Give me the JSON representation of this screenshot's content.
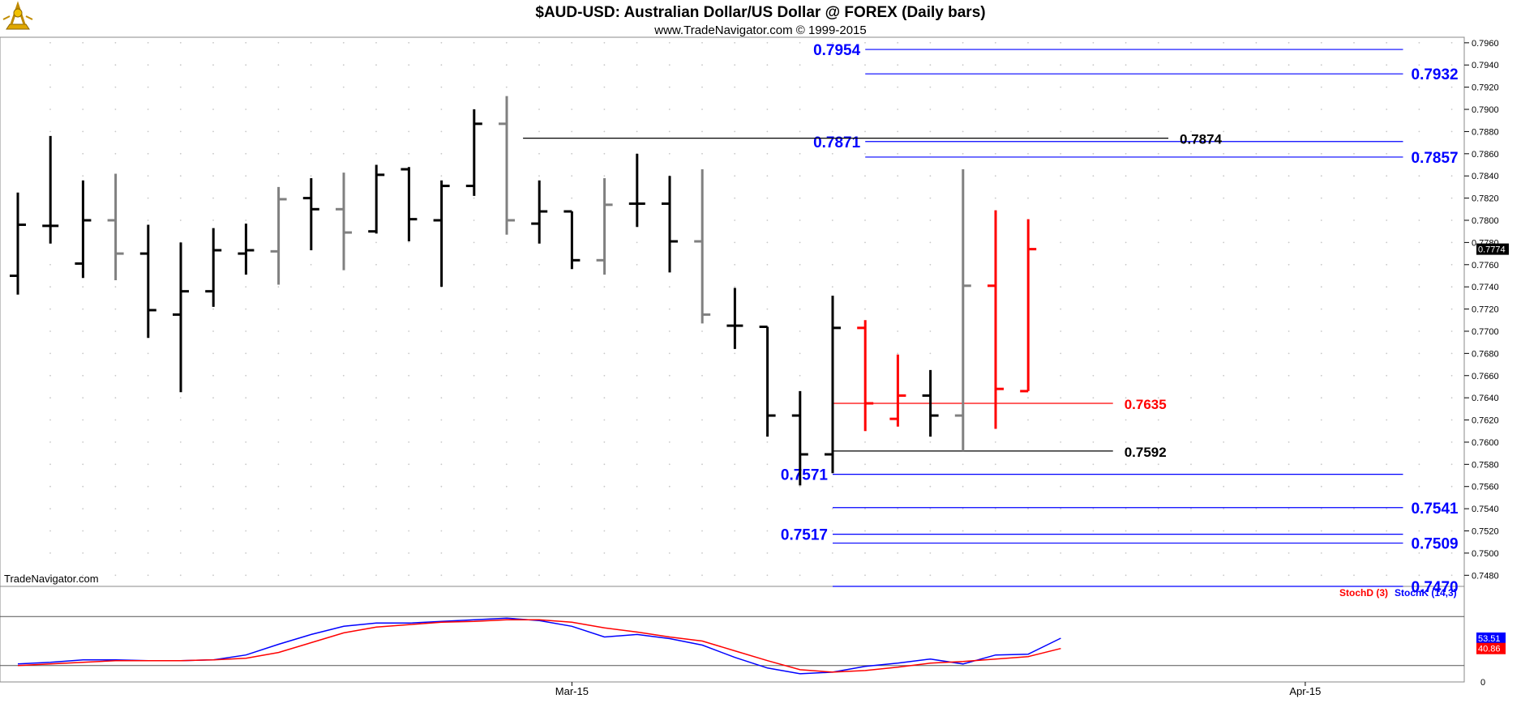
{
  "header": {
    "title": "$AUD-USD:  Australian Dollar/US Dollar @ FOREX  (Daily bars)",
    "subtitle": "www.TradeNavigator.com © 1999-2015",
    "watermark": "TradeNavigator.com",
    "logo_icon": "trade-navigator-logo-icon"
  },
  "colors": {
    "up_bar": "#000000",
    "down_bar": "#808080",
    "recent_bar": "#ff0000",
    "fib_line": "#0000ff",
    "pivot_black": "#000000",
    "pivot_red": "#ff0000",
    "stoch_k": "#0000ff",
    "stoch_d": "#ff0000",
    "grid": "#c8c8c8"
  },
  "chart_data": [
    {
      "type": "ohlc",
      "name": "price-panel",
      "ylim": [
        0.747,
        0.7965
      ],
      "y_ticks": [
        "0.7480",
        "0.7500",
        "0.7520",
        "0.7540",
        "0.7560",
        "0.7580",
        "0.7600",
        "0.7620",
        "0.7640",
        "0.7660",
        "0.7680",
        "0.7700",
        "0.7720",
        "0.7740",
        "0.7760",
        "0.7780",
        "0.7800",
        "0.7820",
        "0.7840",
        "0.7860",
        "0.7880",
        "0.7900",
        "0.7920",
        "0.7940",
        "0.7960"
      ],
      "last_price_label": "0.7774",
      "x_labels": [
        {
          "label": "Mar-15",
          "bar": 17
        },
        {
          "label": "Apr-15",
          "bar": 39.5
        }
      ],
      "bars": [
        {
          "o": 0.775,
          "h": 0.7825,
          "l": 0.7733,
          "c": 0.7796,
          "color": "black"
        },
        {
          "o": 0.7795,
          "h": 0.7876,
          "l": 0.7779,
          "c": 0.7795,
          "color": "black"
        },
        {
          "o": 0.7761,
          "h": 0.7836,
          "l": 0.7748,
          "c": 0.78,
          "color": "black"
        },
        {
          "o": 0.78,
          "h": 0.7842,
          "l": 0.7746,
          "c": 0.777,
          "color": "gray"
        },
        {
          "o": 0.777,
          "h": 0.7796,
          "l": 0.7694,
          "c": 0.7719,
          "color": "black"
        },
        {
          "o": 0.7715,
          "h": 0.778,
          "l": 0.7645,
          "c": 0.7736,
          "color": "black"
        },
        {
          "o": 0.7736,
          "h": 0.7793,
          "l": 0.7722,
          "c": 0.7773,
          "color": "black"
        },
        {
          "o": 0.777,
          "h": 0.7797,
          "l": 0.7751,
          "c": 0.7773,
          "color": "black"
        },
        {
          "o": 0.7772,
          "h": 0.783,
          "l": 0.7742,
          "c": 0.7819,
          "color": "gray"
        },
        {
          "o": 0.782,
          "h": 0.7838,
          "l": 0.7773,
          "c": 0.781,
          "color": "black"
        },
        {
          "o": 0.781,
          "h": 0.7843,
          "l": 0.7755,
          "c": 0.7789,
          "color": "gray"
        },
        {
          "o": 0.779,
          "h": 0.785,
          "l": 0.7788,
          "c": 0.7841,
          "color": "black"
        },
        {
          "o": 0.7846,
          "h": 0.7848,
          "l": 0.7781,
          "c": 0.7801,
          "color": "black"
        },
        {
          "o": 0.78,
          "h": 0.7836,
          "l": 0.774,
          "c": 0.7831,
          "color": "black"
        },
        {
          "o": 0.7831,
          "h": 0.79,
          "l": 0.7822,
          "c": 0.7887,
          "color": "black"
        },
        {
          "o": 0.7887,
          "h": 0.7912,
          "l": 0.7787,
          "c": 0.78,
          "color": "gray"
        },
        {
          "o": 0.7797,
          "h": 0.7836,
          "l": 0.7779,
          "c": 0.7808,
          "color": "black"
        },
        {
          "o": 0.7808,
          "h": 0.7807,
          "l": 0.7756,
          "c": 0.7764,
          "color": "black"
        },
        {
          "o": 0.7764,
          "h": 0.7838,
          "l": 0.7751,
          "c": 0.7814,
          "color": "gray"
        },
        {
          "o": 0.7815,
          "h": 0.786,
          "l": 0.7794,
          "c": 0.7815,
          "color": "black"
        },
        {
          "o": 0.7815,
          "h": 0.784,
          "l": 0.7753,
          "c": 0.7781,
          "color": "black"
        },
        {
          "o": 0.7781,
          "h": 0.7846,
          "l": 0.7707,
          "c": 0.7715,
          "color": "gray"
        },
        {
          "o": 0.7705,
          "h": 0.7739,
          "l": 0.7684,
          "c": 0.7705,
          "color": "black"
        },
        {
          "o": 0.7704,
          "h": 0.7704,
          "l": 0.7605,
          "c": 0.7624,
          "color": "black"
        },
        {
          "o": 0.7624,
          "h": 0.7646,
          "l": 0.7561,
          "c": 0.7589,
          "color": "black"
        },
        {
          "o": 0.7589,
          "h": 0.7732,
          "l": 0.7572,
          "c": 0.7703,
          "color": "black"
        },
        {
          "o": 0.7703,
          "h": 0.771,
          "l": 0.761,
          "c": 0.7635,
          "color": "red"
        },
        {
          "o": 0.7621,
          "h": 0.7679,
          "l": 0.7614,
          "c": 0.7642,
          "color": "red"
        },
        {
          "o": 0.7642,
          "h": 0.7665,
          "l": 0.7605,
          "c": 0.7624,
          "color": "black"
        },
        {
          "o": 0.7624,
          "h": 0.7846,
          "l": 0.7592,
          "c": 0.7741,
          "color": "gray"
        },
        {
          "o": 0.7741,
          "h": 0.7809,
          "l": 0.7612,
          "c": 0.7648,
          "color": "red"
        },
        {
          "o": 0.7646,
          "h": 0.7801,
          "l": 0.7646,
          "c": 0.7774,
          "color": "red"
        }
      ],
      "levels": [
        {
          "value": 0.7954,
          "label": "0.7954",
          "color": "blue",
          "from_bar": 26,
          "to_bar": 42.5,
          "label_side": "left"
        },
        {
          "value": 0.7932,
          "label": "0.7932",
          "color": "blue",
          "from_bar": 26,
          "to_bar": 42.5,
          "label_side": "right"
        },
        {
          "value": 0.7871,
          "label": "0.7871",
          "color": "blue",
          "from_bar": 26,
          "to_bar": 42.5,
          "label_side": "left"
        },
        {
          "value": 0.7857,
          "label": "0.7857",
          "color": "blue",
          "from_bar": 26,
          "to_bar": 42.5,
          "label_side": "right"
        },
        {
          "value": 0.7571,
          "label": "0.7571",
          "color": "blue",
          "from_bar": 25,
          "to_bar": 42.5,
          "label_side": "left"
        },
        {
          "value": 0.7541,
          "label": "0.7541",
          "color": "blue",
          "from_bar": 25,
          "to_bar": 42.5,
          "label_side": "right"
        },
        {
          "value": 0.7517,
          "label": "0.7517",
          "color": "blue",
          "from_bar": 25,
          "to_bar": 42.5,
          "label_side": "left"
        },
        {
          "value": 0.7509,
          "label": "0.7509",
          "color": "blue",
          "from_bar": 25,
          "to_bar": 42.5,
          "label_side": "right"
        },
        {
          "value": 0.747,
          "label": "0.7470",
          "color": "blue",
          "from_bar": 25,
          "to_bar": 42.5,
          "label_side": "right"
        },
        {
          "value": 0.7874,
          "label": "0.7874",
          "color": "black",
          "from_bar": 15.5,
          "to_bar": 35.3,
          "label_side": "right"
        },
        {
          "value": 0.7635,
          "label": "0.7635",
          "color": "red",
          "from_bar": 25,
          "to_bar": 33.6,
          "label_side": "right"
        },
        {
          "value": 0.7592,
          "label": "0.7592",
          "color": "black",
          "from_bar": 25,
          "to_bar": 33.6,
          "label_side": "right"
        }
      ]
    },
    {
      "type": "line",
      "name": "stochastic-panel",
      "ylim": [
        0,
        100
      ],
      "y_ticks": [
        "0"
      ],
      "legend": [
        {
          "label": "StochD (3)",
          "color": "red"
        },
        {
          "label": "StochK (14,3)",
          "color": "blue"
        }
      ],
      "value_labels": [
        {
          "label": "53.51",
          "series": "StochK (14,3)"
        },
        {
          "label": "40.86",
          "series": "StochD (3)"
        }
      ],
      "reference_lines": [
        20,
        80
      ],
      "series": [
        {
          "name": "StochK (14,3)",
          "values": [
            22,
            24,
            27,
            27,
            26,
            26,
            27,
            33,
            46,
            58,
            68,
            72,
            72,
            74,
            76,
            78,
            75,
            68,
            55,
            58,
            53,
            45,
            30,
            17,
            10,
            12,
            19,
            23,
            28,
            22,
            33,
            34,
            53.51
          ]
        },
        {
          "name": "StochD (3)",
          "values": [
            20,
            22,
            24,
            26,
            26,
            26,
            27,
            29,
            36,
            48,
            60,
            67,
            70,
            73,
            74,
            76,
            76,
            73,
            66,
            61,
            55,
            50,
            38,
            26,
            15,
            12,
            14,
            18,
            23,
            25,
            28,
            31,
            40.86
          ]
        }
      ]
    }
  ]
}
